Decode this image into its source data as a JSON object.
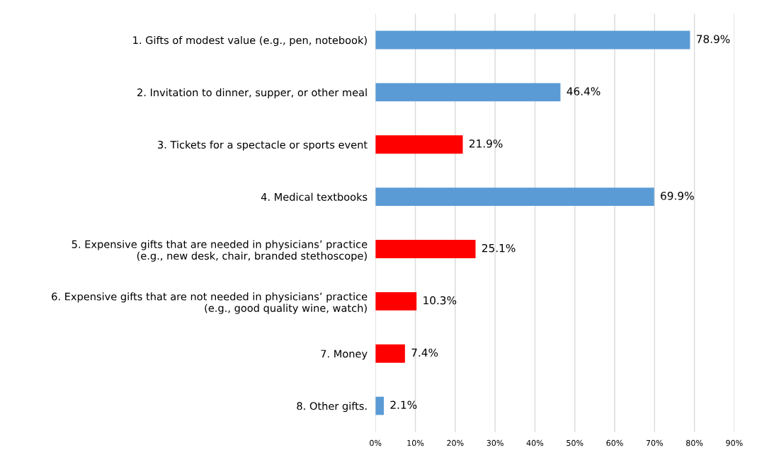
{
  "chart_data": {
    "type": "bar",
    "orientation": "horizontal",
    "categories": [
      "1. Gifts of modest value (e.g., pen, notebook)",
      "2. Invitation to dinner, supper, or other meal",
      "3. Tickets for a spectacle or sports event",
      "4. Medical textbooks",
      "5. Expensive gifts that are needed in physicians’ practice\n(e.g., new desk, chair, branded stethoscope)",
      "6. Expensive gifts that are not needed in physicians’ practice\n(e.g., good quality wine, watch)",
      "7. Money",
      "8. Other gifts."
    ],
    "values": [
      78.9,
      46.4,
      21.9,
      69.9,
      25.1,
      10.3,
      7.4,
      2.1
    ],
    "value_labels": [
      "78.9%",
      "46.4%",
      "21.9%",
      "69.9%",
      "25.1%",
      "10.3%",
      "7.4%",
      "2.1%"
    ],
    "colors": [
      "#5b9bd5",
      "#5b9bd5",
      "#ff0000",
      "#5b9bd5",
      "#ff0000",
      "#ff0000",
      "#ff0000",
      "#5b9bd5"
    ],
    "xlim": [
      0,
      90
    ],
    "xticks": [
      {
        "value": 0,
        "label": "0%"
      },
      {
        "value": 10,
        "label": "10%"
      },
      {
        "value": 20,
        "label": "20%"
      },
      {
        "value": 30,
        "label": "30%"
      },
      {
        "value": 40,
        "label": "40%"
      },
      {
        "value": 50,
        "label": "50%"
      },
      {
        "value": 60,
        "label": "60%"
      },
      {
        "value": 70,
        "label": "70%"
      },
      {
        "value": 80,
        "label": "80%"
      },
      {
        "value": 90,
        "label": "90%"
      }
    ],
    "grid": "x",
    "legend": false
  }
}
